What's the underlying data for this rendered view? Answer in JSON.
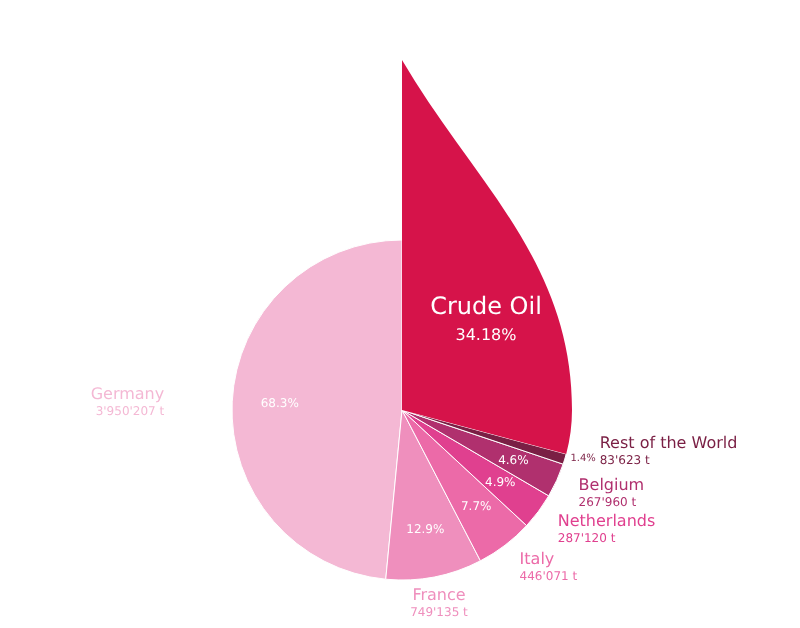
{
  "chart_data": {
    "type": "pie",
    "categories": [
      "Germany",
      "France",
      "Italy",
      "Netherlands",
      "Belgium",
      "Rest of the World"
    ],
    "values": [
      68.3,
      12.9,
      7.7,
      4.9,
      4.6,
      1.4
    ],
    "value_labels": [
      "68.3%",
      "12.9%",
      "7.7%",
      "4.9%",
      "4.6%",
      "1.4%"
    ],
    "colors": [
      "#f4b8d4",
      "#ef8fbd",
      "#ec6aa8",
      "#e0408f",
      "#b0306e",
      "#7a1f44"
    ],
    "legend": false,
    "annotations": [
      "Crude Oil",
      "34.18%",
      {
        "text": "3'950'207 t",
        "x": "Germany"
      },
      {
        "text": "749'135 t",
        "x": "France"
      },
      {
        "text": "446'071 t",
        "x": "Italy"
      },
      {
        "text": "287'120 t",
        "x": "Netherlands"
      },
      {
        "text": "267'960 t",
        "x": "Belgium"
      },
      {
        "text": "83'623 t",
        "x": "Rest of the World"
      }
    ]
  }
}
